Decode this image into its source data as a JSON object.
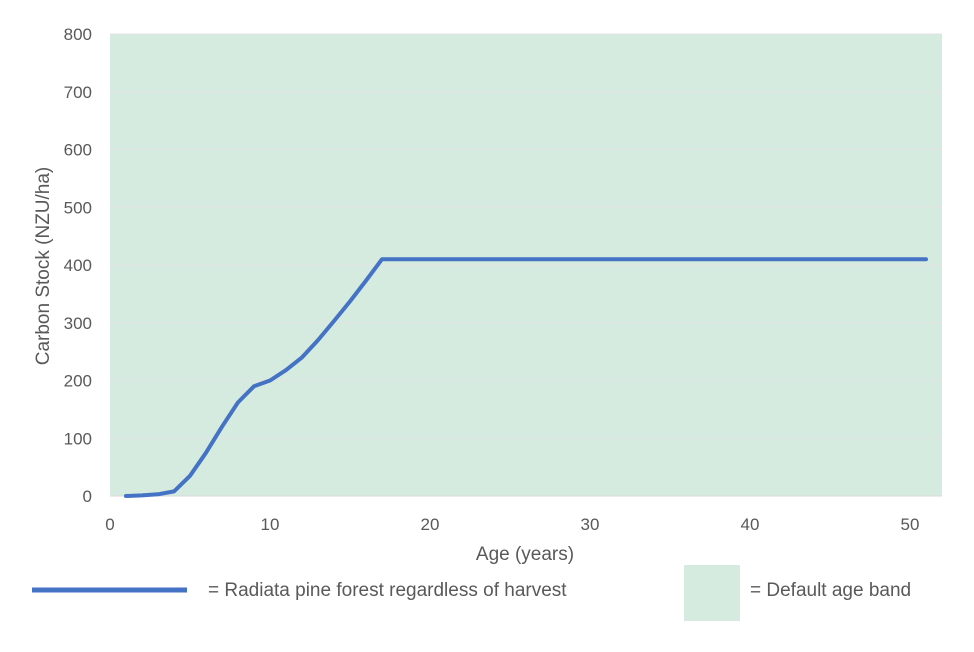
{
  "chart_data": {
    "type": "line",
    "title": "",
    "xlabel": "Age (years)",
    "ylabel": "Carbon Stock (NZU/ha)",
    "xlim": [
      0,
      52
    ],
    "ylim": [
      0,
      800
    ],
    "x_ticks": [
      "0",
      "10",
      "20",
      "30",
      "40",
      "50"
    ],
    "y_ticks": [
      "0",
      "100",
      "200",
      "300",
      "400",
      "500",
      "600",
      "700",
      "800"
    ],
    "grid": true,
    "legend_position": "bottom",
    "series": [
      {
        "name": "Radiata pine forest regardless of harvest",
        "color": "#4472c4",
        "x": [
          1,
          2,
          3,
          4,
          5,
          6,
          7,
          8,
          9,
          10,
          11,
          12,
          13,
          14,
          15,
          16,
          17,
          51
        ],
        "y": [
          0,
          1,
          3,
          8,
          35,
          75,
          120,
          162,
          190,
          200,
          218,
          240,
          270,
          303,
          337,
          373,
          410,
          410
        ]
      }
    ],
    "band": {
      "name": "Default age band",
      "color": "#d6ebe0",
      "x_range": [
        0,
        52
      ]
    },
    "legend": {
      "series_label": "= Radiata pine forest regardless of harvest",
      "band_label": "= Default age band"
    }
  }
}
